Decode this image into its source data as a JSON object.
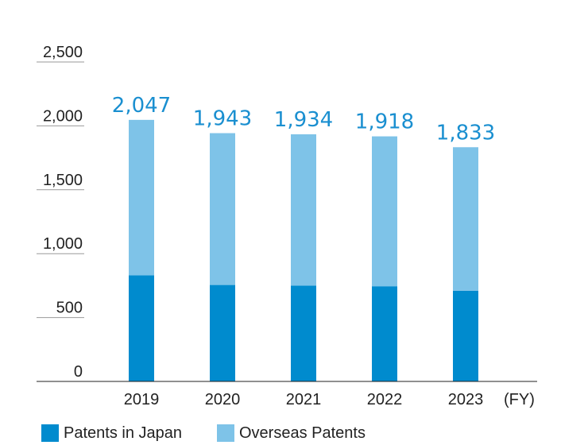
{
  "chart_data": {
    "type": "bar",
    "stacked": true,
    "categories": [
      "2019",
      "2020",
      "2021",
      "2022",
      "2023"
    ],
    "series": [
      {
        "name": "Patents in Japan",
        "values": [
          830,
          755,
          750,
          745,
          710
        ],
        "color": "#008bce"
      },
      {
        "name": "Overseas Patents",
        "values": [
          1217,
          1188,
          1184,
          1173,
          1123
        ],
        "color": "#7ec3e8"
      }
    ],
    "totals": [
      "2,047",
      "1,943",
      "1,934",
      "1,918",
      "1,833"
    ],
    "total_color": "#1a8fd0",
    "x_unit_label": "(FY)",
    "ylim": [
      0,
      2500
    ],
    "yticks": [
      0,
      500,
      1000,
      1500,
      2000,
      2500
    ],
    "ytick_labels": [
      "0",
      "500",
      "1,000",
      "1,500",
      "2,000",
      "2,500"
    ],
    "grid": false,
    "legend_position": "bottom-left"
  }
}
